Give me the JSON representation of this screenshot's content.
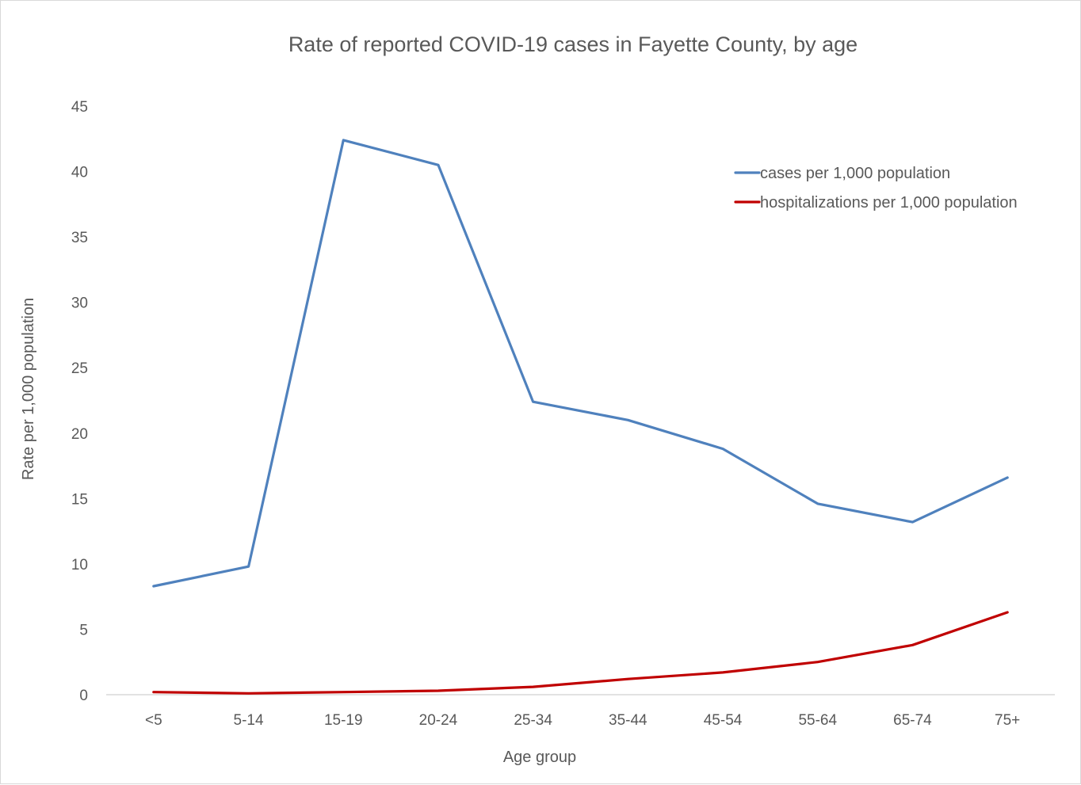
{
  "chart_data": {
    "type": "line",
    "title": "Rate of reported COVID-19 cases in Fayette County, by age",
    "xlabel": "Age group",
    "ylabel": "Rate per 1,000 population",
    "ylim": [
      0,
      45
    ],
    "yticks": [
      0,
      5,
      10,
      15,
      20,
      25,
      30,
      35,
      40,
      45
    ],
    "categories": [
      "<5",
      "5-14",
      "15-19",
      "20-24",
      "25-34",
      "35-44",
      "45-54",
      "55-64",
      "65-74",
      "75+"
    ],
    "grid": false,
    "legend_position": "top-right",
    "series": [
      {
        "name": "cases per 1,000 population",
        "color": "#4f81bd",
        "values": [
          8.3,
          9.8,
          42.4,
          40.5,
          22.4,
          21.0,
          18.8,
          14.6,
          13.2,
          16.6
        ]
      },
      {
        "name": "hospitalizations per 1,000 population",
        "color": "#c00000",
        "values": [
          0.2,
          0.1,
          0.2,
          0.3,
          0.6,
          1.2,
          1.7,
          2.5,
          3.8,
          6.3
        ]
      }
    ]
  }
}
